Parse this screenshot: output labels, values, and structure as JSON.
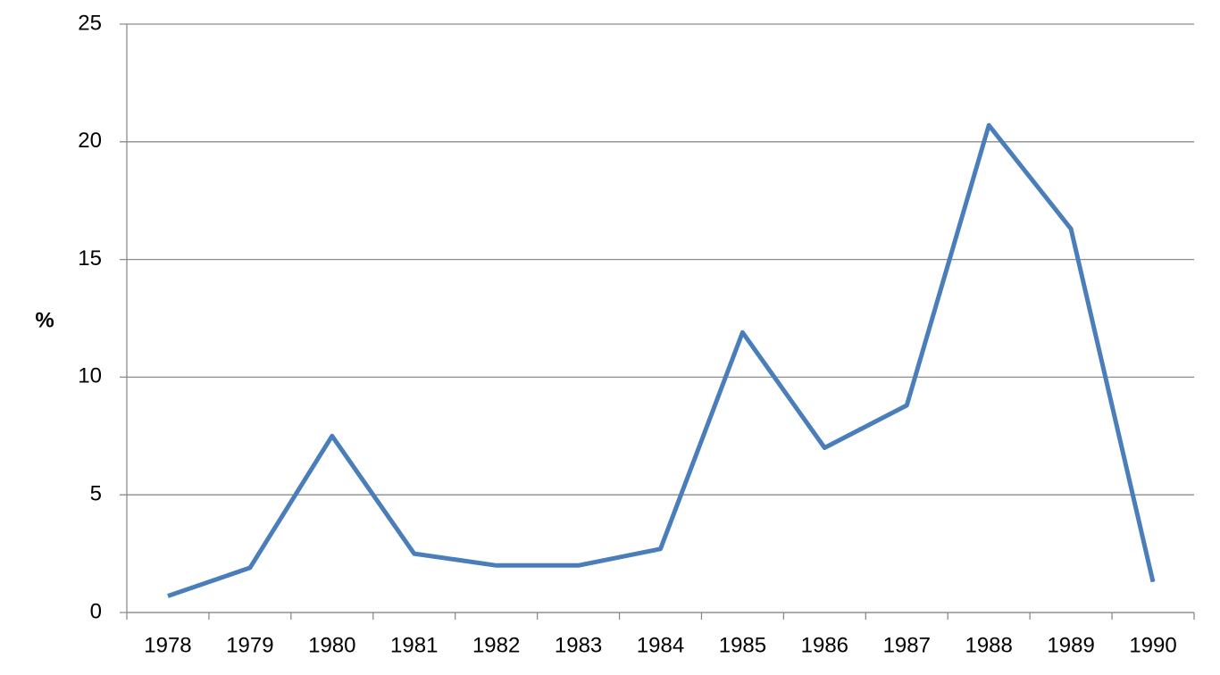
{
  "chart_data": {
    "type": "line",
    "y_label": "%",
    "categories": [
      "1978",
      "1979",
      "1980",
      "1981",
      "1982",
      "1983",
      "1984",
      "1985",
      "1986",
      "1987",
      "1988",
      "1989",
      "1990"
    ],
    "values": [
      0.7,
      1.9,
      7.5,
      2.5,
      2.0,
      2.0,
      2.7,
      11.9,
      7.0,
      8.8,
      20.7,
      16.3,
      1.3
    ],
    "color": "#4a7ebb",
    "ylim": [
      0,
      25
    ],
    "yticks": [
      0,
      5,
      10,
      15,
      20,
      25
    ],
    "grid": true
  }
}
